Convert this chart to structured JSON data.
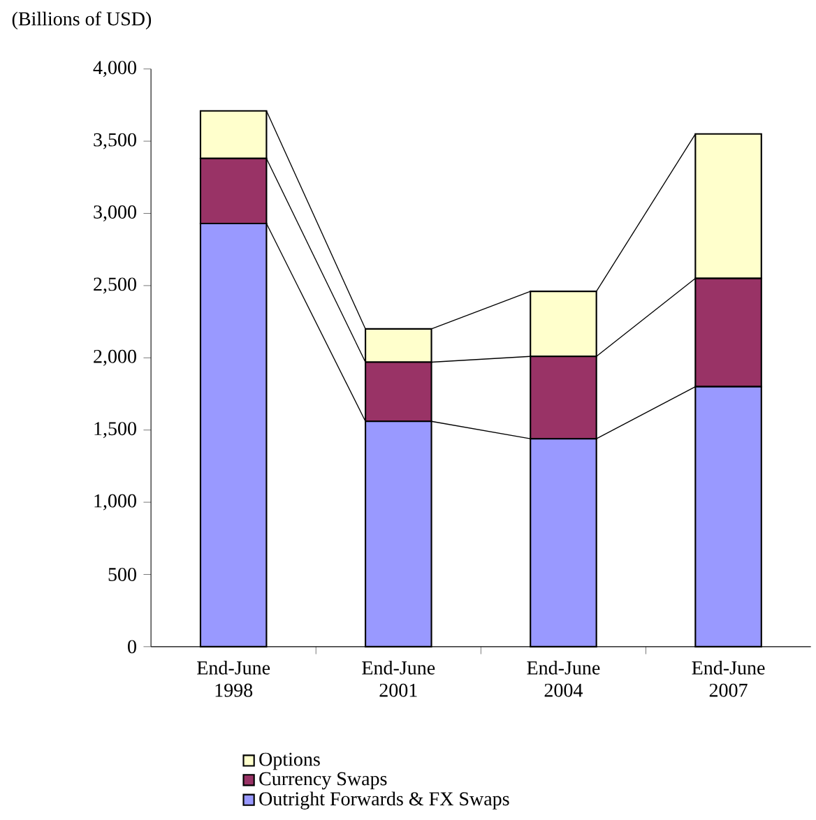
{
  "chart_data": {
    "type": "bar",
    "stacked": true,
    "ylabel": "(Billions of USD)",
    "categories": [
      "End-June\n1998",
      "End-June\n2001",
      "End-June\n2004",
      "End-June\n2007"
    ],
    "series": [
      {
        "name": "Outright Forwards & FX Swaps",
        "color": "#9999ff",
        "values": [
          2930,
          1560,
          1440,
          1800
        ]
      },
      {
        "name": "Currency Swaps",
        "color": "#993366",
        "values": [
          450,
          410,
          570,
          750
        ]
      },
      {
        "name": "Options",
        "color": "#ffffcc",
        "values": [
          330,
          230,
          450,
          1000
        ]
      }
    ],
    "ylim": [
      0,
      4000
    ],
    "yticks": [
      0,
      500,
      {
        "value": 1000,
        "label": "1,000"
      },
      {
        "value": 1500,
        "label": "1,500"
      },
      {
        "value": 2000,
        "label": "2,000"
      },
      {
        "value": 2500,
        "label": "2,500"
      },
      {
        "value": 3000,
        "label": "3,000"
      },
      {
        "value": 3500,
        "label": "3,500"
      },
      {
        "value": 4000,
        "label": "4,000"
      }
    ],
    "legend": "bottom",
    "grid": false
  }
}
